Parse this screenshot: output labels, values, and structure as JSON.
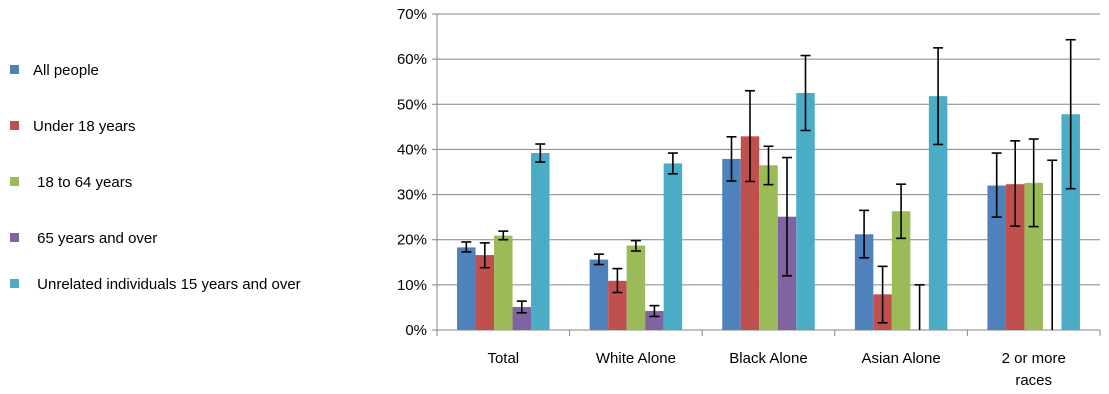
{
  "chart_data": {
    "type": "bar",
    "title": "",
    "xlabel": "",
    "ylabel": "",
    "ylim": [
      0,
      70
    ],
    "yticks": [
      0,
      10,
      20,
      30,
      40,
      50,
      60,
      70
    ],
    "ytick_labels": [
      "0%",
      "10%",
      "20%",
      "30%",
      "40%",
      "50%",
      "60%",
      "70%"
    ],
    "grid": true,
    "legend_position": "left",
    "categories": [
      "Total",
      "White Alone",
      "Black Alone",
      "Asian Alone",
      "2 or more races"
    ],
    "category_labels": [
      [
        "Total"
      ],
      [
        "White Alone"
      ],
      [
        "Black Alone"
      ],
      [
        "Asian Alone"
      ],
      [
        "2 or more",
        "races"
      ]
    ],
    "series": [
      {
        "name": "All people",
        "color": "#4F81BD",
        "values": [
          18.3,
          15.6,
          37.9,
          21.2,
          32.0
        ],
        "err_low": [
          17.3,
          14.5,
          33.0,
          16.0,
          25.0
        ],
        "err_high": [
          19.5,
          16.8,
          42.8,
          26.5,
          39.2
        ]
      },
      {
        "name": "Under 18 years",
        "color": "#C0504D",
        "values": [
          16.6,
          10.9,
          42.9,
          7.9,
          32.3
        ],
        "err_low": [
          13.8,
          8.3,
          32.9,
          1.6,
          23.0
        ],
        "err_high": [
          19.3,
          13.6,
          53.0,
          14.1,
          41.9
        ]
      },
      {
        "name": " 18 to 64 years",
        "color": "#9BBB59",
        "values": [
          20.9,
          18.7,
          36.5,
          26.3,
          32.6
        ],
        "err_low": [
          20.0,
          17.5,
          32.2,
          20.3,
          22.9
        ],
        "err_high": [
          21.9,
          19.8,
          40.7,
          32.3,
          42.3
        ]
      },
      {
        "name": " 65 years and over",
        "color": "#8064A2",
        "values": [
          5.1,
          4.2,
          25.1,
          0,
          0
        ],
        "err_low": [
          3.8,
          3.0,
          12.0,
          0,
          0
        ],
        "err_high": [
          6.4,
          5.4,
          38.2,
          10.0,
          37.6
        ]
      },
      {
        "name": " Unrelated individuals 15 years and over",
        "color": "#4BACC6",
        "values": [
          39.2,
          36.9,
          52.5,
          51.8,
          47.8
        ],
        "err_low": [
          37.2,
          34.6,
          44.2,
          41.1,
          31.3
        ],
        "err_high": [
          41.2,
          39.2,
          60.8,
          62.5,
          64.3
        ]
      }
    ]
  }
}
